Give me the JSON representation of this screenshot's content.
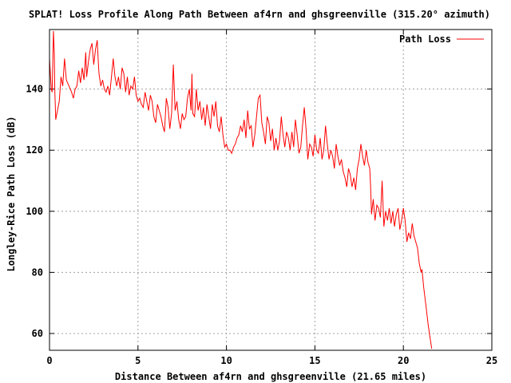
{
  "chart_data": {
    "type": "line",
    "title": "SPLAT! Loss Profile Along Path Between af4rn and ghsgreenville (315.20° azimuth)",
    "xlabel": "Distance Between af4rn and ghsgreenville (21.65 miles)",
    "ylabel": "Longley-Rice Path Loss (dB)",
    "xlim": [
      0,
      25
    ],
    "ylim": [
      54.5,
      159.5
    ],
    "x_ticks": [
      0,
      5,
      10,
      15,
      20,
      25
    ],
    "y_ticks": [
      60,
      80,
      100,
      120,
      140
    ],
    "grid": true,
    "legend_position": "top-right",
    "series": [
      {
        "name": "Path Loss",
        "color": "#ff0000",
        "points": [
          [
            0.0,
            150
          ],
          [
            0.1,
            140
          ],
          [
            0.15,
            139
          ],
          [
            0.22,
            159
          ],
          [
            0.27,
            152
          ],
          [
            0.3,
            140
          ],
          [
            0.35,
            130
          ],
          [
            0.45,
            133
          ],
          [
            0.55,
            136
          ],
          [
            0.65,
            144
          ],
          [
            0.75,
            141
          ],
          [
            0.85,
            150
          ],
          [
            0.95,
            143
          ],
          [
            1.1,
            141
          ],
          [
            1.25,
            139
          ],
          [
            1.35,
            137
          ],
          [
            1.45,
            140
          ],
          [
            1.55,
            141
          ],
          [
            1.65,
            146
          ],
          [
            1.75,
            142
          ],
          [
            1.85,
            147
          ],
          [
            1.95,
            143
          ],
          [
            2.05,
            152
          ],
          [
            2.1,
            144
          ],
          [
            2.2,
            149
          ],
          [
            2.3,
            153
          ],
          [
            2.4,
            155
          ],
          [
            2.5,
            148
          ],
          [
            2.6,
            153
          ],
          [
            2.7,
            156
          ],
          [
            2.75,
            150
          ],
          [
            2.8,
            145
          ],
          [
            2.9,
            141
          ],
          [
            3.0,
            143
          ],
          [
            3.1,
            140
          ],
          [
            3.2,
            139
          ],
          [
            3.3,
            141
          ],
          [
            3.4,
            138
          ],
          [
            3.5,
            144
          ],
          [
            3.6,
            150
          ],
          [
            3.7,
            144
          ],
          [
            3.8,
            141
          ],
          [
            3.9,
            144
          ],
          [
            4.0,
            140
          ],
          [
            4.1,
            147
          ],
          [
            4.2,
            145
          ],
          [
            4.3,
            139
          ],
          [
            4.4,
            144
          ],
          [
            4.5,
            138
          ],
          [
            4.6,
            141
          ],
          [
            4.7,
            140
          ],
          [
            4.8,
            144
          ],
          [
            4.9,
            138
          ],
          [
            5.0,
            136
          ],
          [
            5.1,
            137
          ],
          [
            5.2,
            135
          ],
          [
            5.3,
            134
          ],
          [
            5.4,
            139
          ],
          [
            5.5,
            136
          ],
          [
            5.6,
            133
          ],
          [
            5.7,
            138
          ],
          [
            5.8,
            136
          ],
          [
            5.9,
            131
          ],
          [
            6.0,
            129
          ],
          [
            6.1,
            135
          ],
          [
            6.2,
            133
          ],
          [
            6.3,
            131
          ],
          [
            6.4,
            128
          ],
          [
            6.5,
            126
          ],
          [
            6.6,
            137
          ],
          [
            6.7,
            134
          ],
          [
            6.8,
            127
          ],
          [
            6.9,
            132
          ],
          [
            7.0,
            148
          ],
          [
            7.1,
            133
          ],
          [
            7.2,
            136
          ],
          [
            7.3,
            130
          ],
          [
            7.4,
            127
          ],
          [
            7.5,
            132
          ],
          [
            7.6,
            130
          ],
          [
            7.7,
            131
          ],
          [
            7.8,
            137
          ],
          [
            7.9,
            140
          ],
          [
            8.0,
            133
          ],
          [
            8.05,
            145
          ],
          [
            8.1,
            132
          ],
          [
            8.2,
            131
          ],
          [
            8.3,
            140
          ],
          [
            8.4,
            133
          ],
          [
            8.5,
            136
          ],
          [
            8.6,
            130
          ],
          [
            8.7,
            134
          ],
          [
            8.8,
            128
          ],
          [
            8.9,
            135
          ],
          [
            9.0,
            131
          ],
          [
            9.1,
            127
          ],
          [
            9.2,
            135
          ],
          [
            9.3,
            131
          ],
          [
            9.4,
            136
          ],
          [
            9.5,
            128
          ],
          [
            9.6,
            126
          ],
          [
            9.7,
            131
          ],
          [
            9.8,
            125
          ],
          [
            9.9,
            121
          ],
          [
            10.0,
            122
          ],
          [
            10.1,
            120
          ],
          [
            10.2,
            120
          ],
          [
            10.3,
            119
          ],
          [
            10.4,
            121
          ],
          [
            10.5,
            122
          ],
          [
            10.6,
            124
          ],
          [
            10.7,
            125
          ],
          [
            10.8,
            128
          ],
          [
            10.9,
            126
          ],
          [
            11.0,
            130
          ],
          [
            11.1,
            124
          ],
          [
            11.2,
            133
          ],
          [
            11.3,
            127
          ],
          [
            11.4,
            128
          ],
          [
            11.5,
            121
          ],
          [
            11.6,
            125
          ],
          [
            11.7,
            131
          ],
          [
            11.8,
            137
          ],
          [
            11.9,
            138
          ],
          [
            12.0,
            129
          ],
          [
            12.1,
            126
          ],
          [
            12.2,
            122
          ],
          [
            12.3,
            131
          ],
          [
            12.4,
            129
          ],
          [
            12.5,
            123
          ],
          [
            12.6,
            127
          ],
          [
            12.7,
            120
          ],
          [
            12.8,
            124
          ],
          [
            12.9,
            120
          ],
          [
            13.0,
            123
          ],
          [
            13.1,
            131
          ],
          [
            13.2,
            125
          ],
          [
            13.3,
            121
          ],
          [
            13.4,
            126
          ],
          [
            13.5,
            124
          ],
          [
            13.6,
            120
          ],
          [
            13.7,
            126
          ],
          [
            13.8,
            121
          ],
          [
            13.9,
            130
          ],
          [
            14.0,
            125
          ],
          [
            14.1,
            119
          ],
          [
            14.2,
            121
          ],
          [
            14.3,
            128
          ],
          [
            14.4,
            134
          ],
          [
            14.5,
            127
          ],
          [
            14.6,
            117
          ],
          [
            14.7,
            122
          ],
          [
            14.8,
            121
          ],
          [
            14.9,
            118
          ],
          [
            15.0,
            125
          ],
          [
            15.1,
            120
          ],
          [
            15.2,
            119
          ],
          [
            15.3,
            124
          ],
          [
            15.4,
            117
          ],
          [
            15.5,
            120
          ],
          [
            15.6,
            128
          ],
          [
            15.7,
            122
          ],
          [
            15.8,
            117
          ],
          [
            15.9,
            120
          ],
          [
            16.0,
            118
          ],
          [
            16.1,
            114
          ],
          [
            16.2,
            122
          ],
          [
            16.3,
            118
          ],
          [
            16.4,
            115
          ],
          [
            16.5,
            117
          ],
          [
            16.6,
            113
          ],
          [
            16.7,
            111
          ],
          [
            16.8,
            108
          ],
          [
            16.9,
            114
          ],
          [
            17.0,
            112
          ],
          [
            17.1,
            108
          ],
          [
            17.2,
            111
          ],
          [
            17.3,
            107
          ],
          [
            17.4,
            114
          ],
          [
            17.5,
            117
          ],
          [
            17.6,
            122
          ],
          [
            17.7,
            118
          ],
          [
            17.8,
            115
          ],
          [
            17.9,
            120
          ],
          [
            18.0,
            116
          ],
          [
            18.1,
            114
          ],
          [
            18.15,
            108
          ],
          [
            18.2,
            99
          ],
          [
            18.3,
            104
          ],
          [
            18.4,
            97
          ],
          [
            18.5,
            102
          ],
          [
            18.6,
            101
          ],
          [
            18.7,
            98
          ],
          [
            18.8,
            110
          ],
          [
            18.9,
            95
          ],
          [
            19.0,
            100
          ],
          [
            19.1,
            97
          ],
          [
            19.2,
            101
          ],
          [
            19.3,
            96
          ],
          [
            19.4,
            100
          ],
          [
            19.5,
            95
          ],
          [
            19.6,
            99
          ],
          [
            19.7,
            101
          ],
          [
            19.8,
            94
          ],
          [
            19.9,
            97
          ],
          [
            20.0,
            101
          ],
          [
            20.1,
            97
          ],
          [
            20.2,
            90
          ],
          [
            20.3,
            93
          ],
          [
            20.4,
            91
          ],
          [
            20.5,
            96
          ],
          [
            20.6,
            92
          ],
          [
            20.7,
            90
          ],
          [
            20.8,
            88
          ],
          [
            20.9,
            83
          ],
          [
            21.0,
            80
          ],
          [
            21.05,
            81
          ],
          [
            21.15,
            75
          ],
          [
            21.3,
            68
          ],
          [
            21.4,
            63
          ],
          [
            21.5,
            59
          ],
          [
            21.6,
            55
          ]
        ]
      }
    ]
  }
}
